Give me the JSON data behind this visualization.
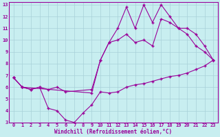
{
  "xlabel": "Windchill (Refroidissement éolien,°C)",
  "bg_color": "#c8eef0",
  "line_color": "#990099",
  "grid_color": "#a8d0d8",
  "xlim": [
    -0.5,
    23.5
  ],
  "ylim": [
    3,
    13.2
  ],
  "xticks": [
    0,
    1,
    2,
    3,
    4,
    5,
    6,
    7,
    8,
    9,
    10,
    11,
    12,
    13,
    14,
    15,
    16,
    17,
    18,
    19,
    20,
    21,
    22,
    23
  ],
  "yticks": [
    3,
    4,
    5,
    6,
    7,
    8,
    9,
    10,
    11,
    12,
    13
  ],
  "line1_x": [
    0,
    1,
    2,
    3,
    4,
    5,
    6,
    7,
    8,
    9,
    10,
    11,
    12,
    13,
    14,
    15,
    16,
    17,
    18,
    19,
    20,
    21,
    22,
    23
  ],
  "line1_y": [
    6.8,
    6.0,
    5.8,
    6.0,
    4.2,
    4.0,
    3.2,
    3.0,
    3.8,
    4.5,
    5.6,
    5.5,
    5.6,
    6.0,
    6.2,
    6.3,
    6.5,
    6.7,
    6.9,
    7.0,
    7.2,
    7.5,
    7.8,
    8.3
  ],
  "line2_x": [
    0,
    1,
    9,
    10,
    11,
    12,
    13,
    14,
    15,
    16,
    17,
    18,
    19,
    20,
    21,
    22,
    23
  ],
  "line2_y": [
    6.8,
    6.0,
    5.5,
    8.3,
    9.8,
    11.0,
    12.8,
    11.0,
    13.0,
    11.5,
    13.0,
    12.0,
    11.0,
    10.5,
    9.5,
    9.0,
    8.3
  ],
  "line3_x": [
    0,
    1,
    2,
    3,
    4,
    5,
    6,
    9,
    10,
    11,
    12,
    13,
    14,
    15,
    16,
    17,
    18,
    19,
    20,
    21,
    22,
    23
  ],
  "line3_y": [
    6.8,
    6.0,
    5.8,
    6.0,
    5.8,
    6.0,
    5.6,
    5.8,
    8.3,
    9.8,
    10.0,
    10.5,
    9.8,
    10.0,
    9.5,
    11.8,
    11.5,
    11.0,
    11.0,
    10.5,
    9.5,
    8.3
  ]
}
